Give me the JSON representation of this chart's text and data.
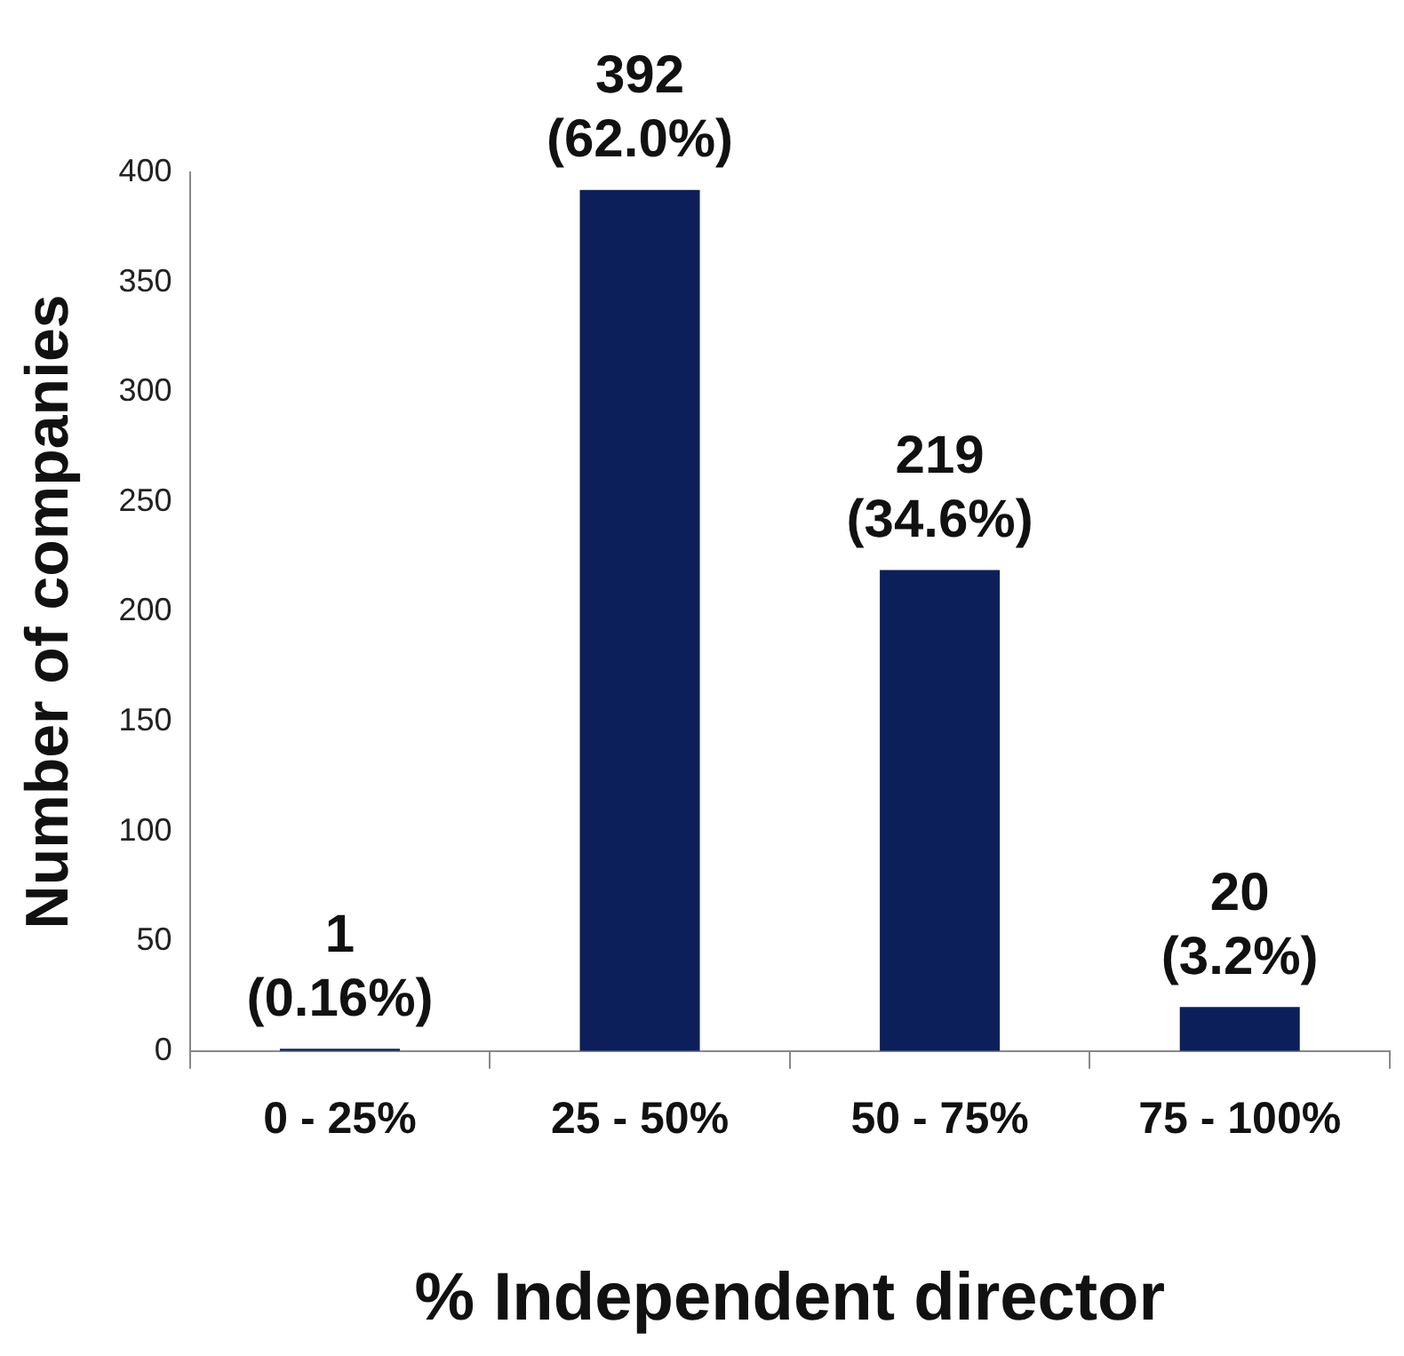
{
  "chart_data": {
    "type": "bar",
    "xlabel": "% Independent director",
    "ylabel": "Number of companies",
    "categories": [
      "0 - 25%",
      "25 - 50%",
      "50 - 75%",
      "75 - 100%"
    ],
    "values": [
      1,
      392,
      219,
      20
    ],
    "value_labels": [
      "1\n(0.16%)",
      "392\n(62.0%)",
      "219\n(34.6%)",
      "20\n(3.2%)"
    ],
    "color": "#0c1f5b",
    "ylim": [
      0,
      400
    ],
    "yticks": [
      0,
      50,
      100,
      150,
      200,
      250,
      300,
      350,
      400
    ]
  }
}
